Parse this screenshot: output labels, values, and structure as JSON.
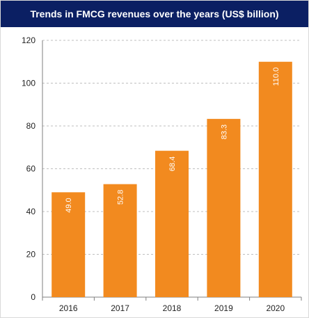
{
  "chart_data": {
    "type": "bar",
    "title": "Trends in FMCG revenues over the years (US$ billion)",
    "categories": [
      "2016",
      "2017",
      "2018",
      "2019",
      "2020"
    ],
    "values": [
      49.0,
      52.8,
      68.4,
      83.3,
      110.0
    ],
    "value_labels": [
      "49.0",
      "52.8",
      "68.4",
      "83.3",
      "110.0"
    ],
    "ylim": [
      0,
      120
    ],
    "yticks": [
      0,
      20,
      40,
      60,
      80,
      100,
      120
    ],
    "grid": true,
    "bar_color": "#f28a1f",
    "title_bg_color": "#0b1f63"
  }
}
